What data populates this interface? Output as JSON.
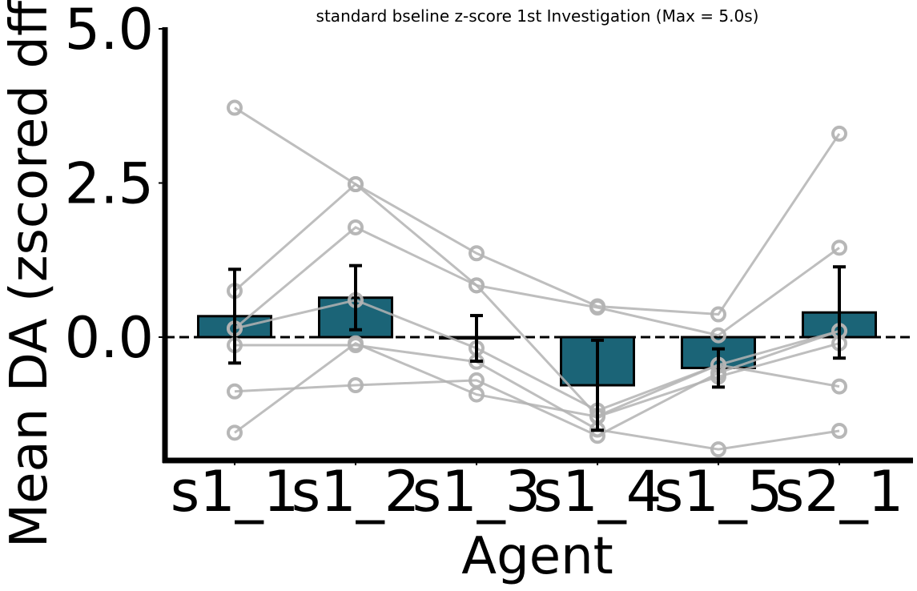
{
  "chart_data": {
    "type": "bar",
    "title": "standard bseline z-score 1st Investigation (Max = 5.0s)",
    "xlabel": "Agent",
    "ylabel": "Mean DA (zscored dff)",
    "categories": [
      "s1_1",
      "s1_2",
      "s1_3",
      "s1_4",
      "s1_5",
      "s2_1"
    ],
    "values": [
      0.34,
      0.64,
      -0.02,
      -0.78,
      -0.5,
      0.4
    ],
    "error": [
      0.76,
      0.52,
      0.37,
      0.73,
      0.31,
      0.74
    ],
    "yticks": [
      "0.0",
      "2.5",
      "5.0"
    ],
    "ylim": [
      -2.0,
      5.0
    ],
    "reference_line": 0.0,
    "individual_points": [
      {
        "values": [
          3.72,
          2.48,
          1.36,
          0.5,
          0.37,
          3.3
        ]
      },
      {
        "values": [
          0.75,
          2.48,
          0.84,
          0.48,
          0.03,
          1.45
        ]
      },
      {
        "values": [
          0.14,
          1.78,
          0.84,
          -1.28,
          -0.45,
          -0.8
        ]
      },
      {
        "values": [
          -0.13,
          -0.13,
          -0.4,
          -1.5,
          -1.82,
          -1.52
        ]
      },
      {
        "values": [
          -0.88,
          -0.78,
          -0.7,
          -1.6,
          -0.58,
          0.1
        ]
      },
      {
        "values": [
          -1.55,
          -0.1,
          -0.93,
          -1.29,
          -0.64,
          -0.1
        ]
      },
      {
        "values": [
          0.14,
          0.6,
          -0.18,
          -1.19,
          -0.45,
          0.1
        ]
      }
    ],
    "colors": {
      "bar": "#1b6477",
      "point": "#b3b3b3",
      "error": "#000000"
    },
    "grid": false,
    "legend": "none"
  }
}
